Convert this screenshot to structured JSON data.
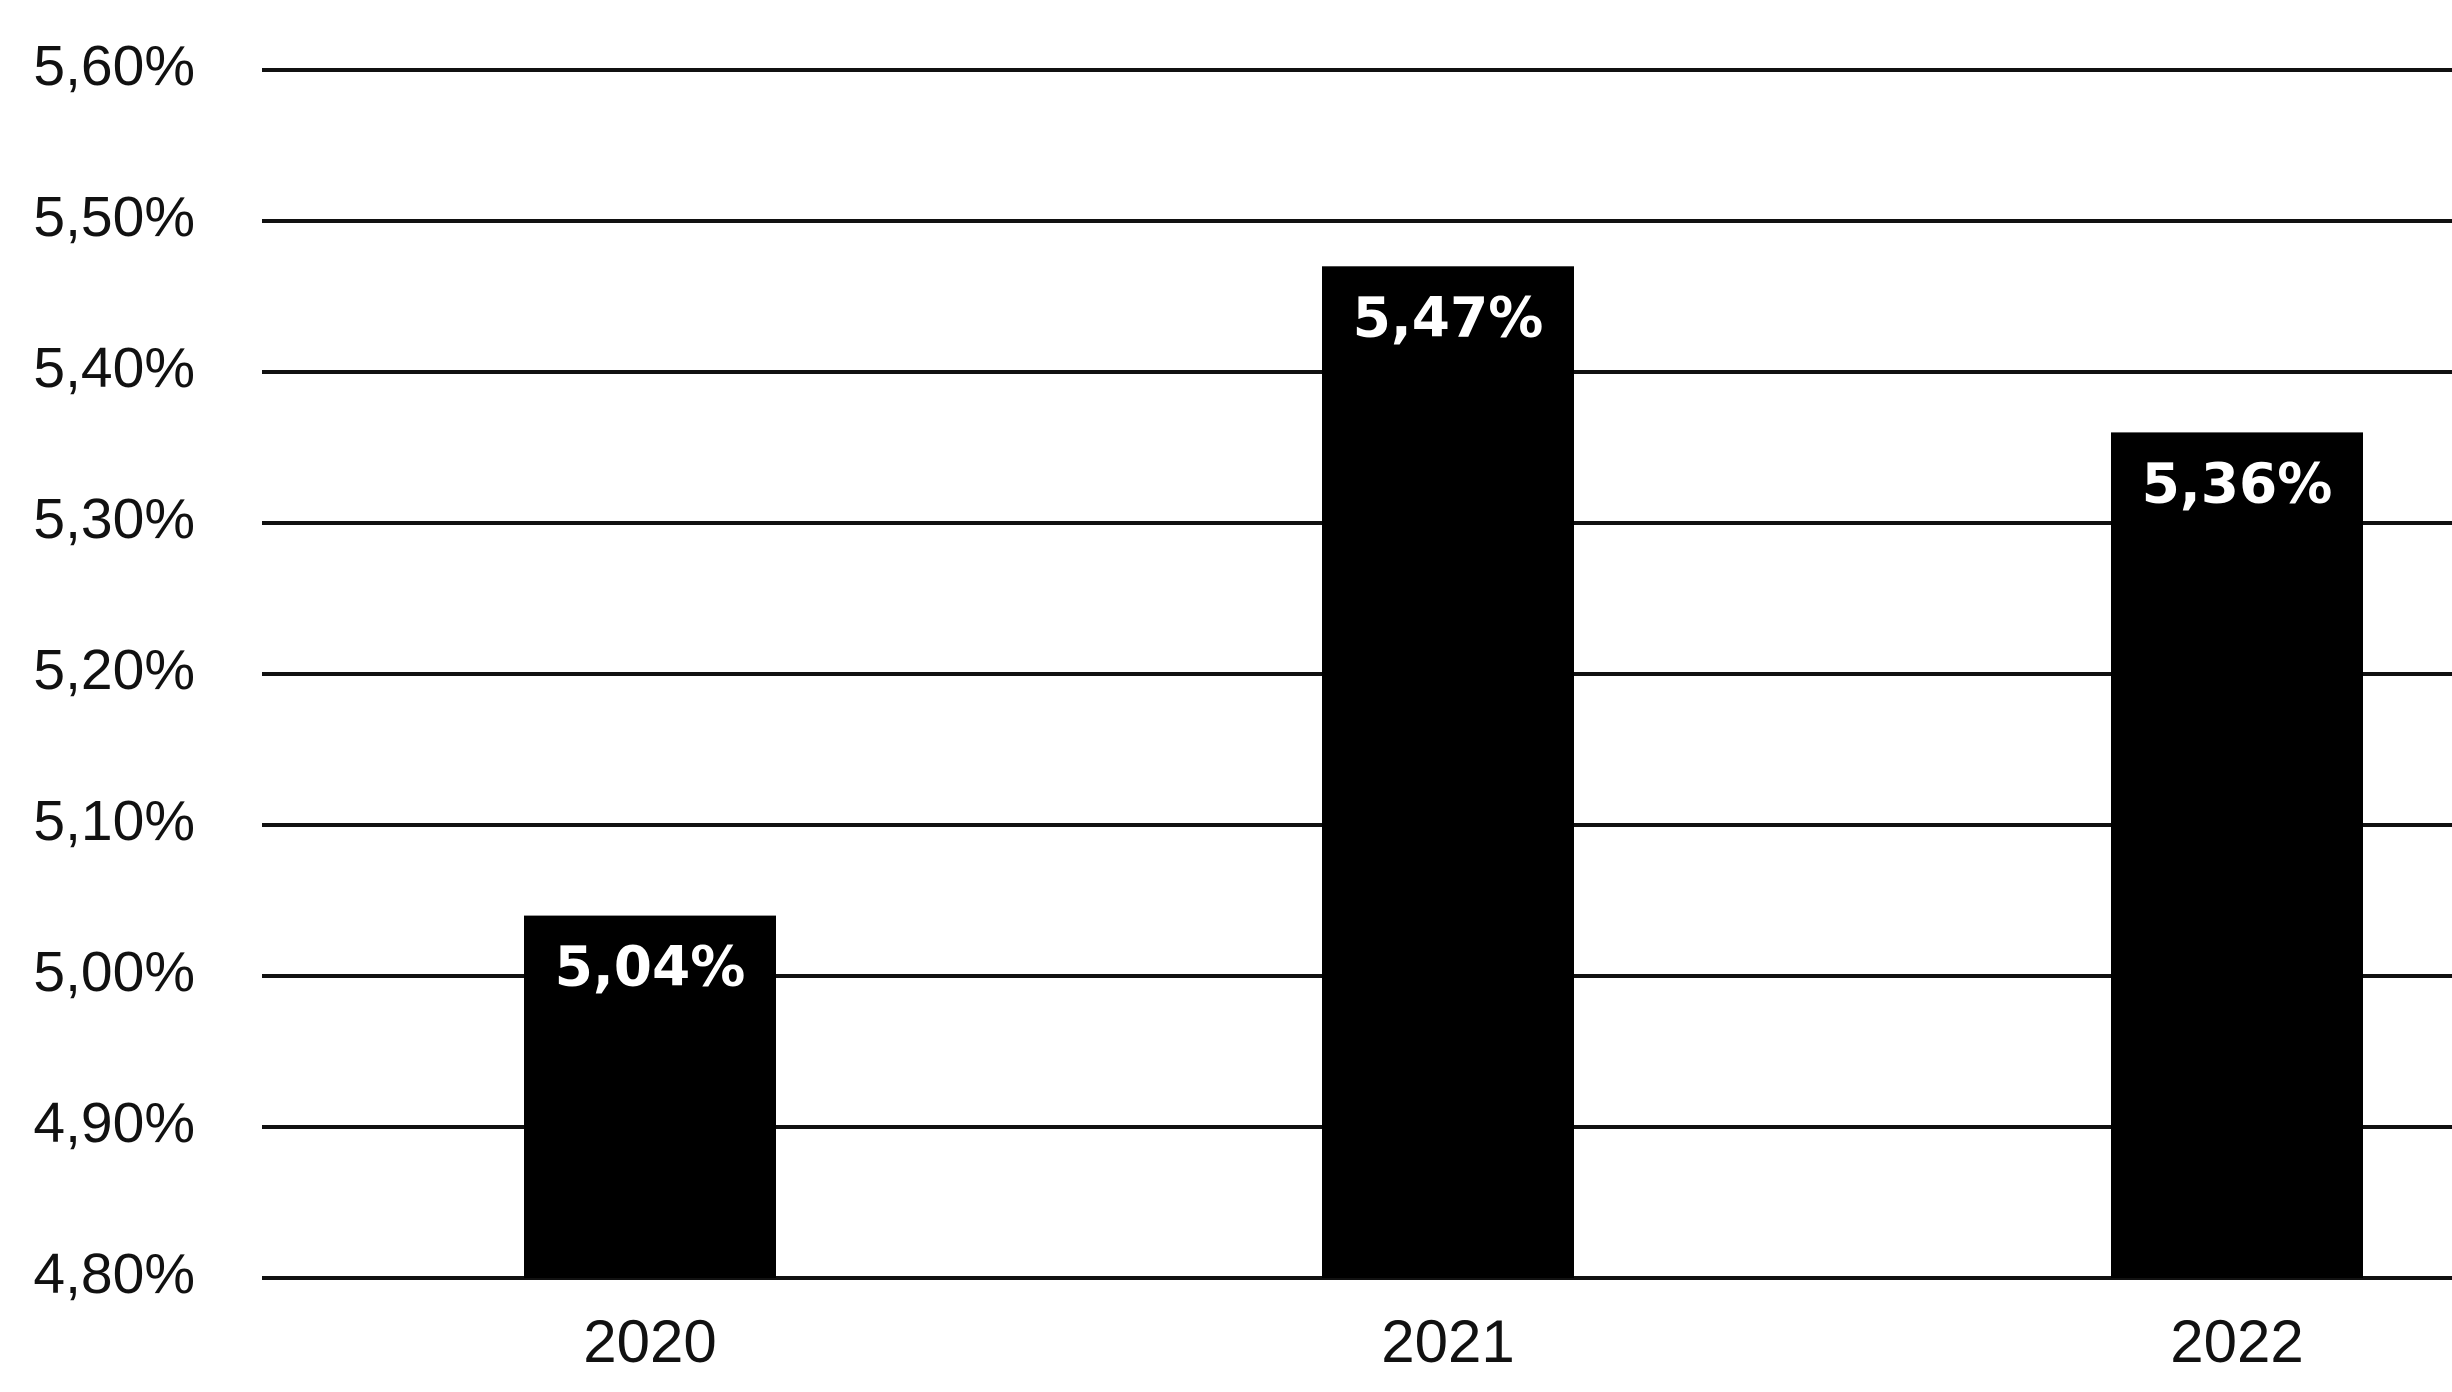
{
  "chart_data": {
    "type": "bar",
    "title": "",
    "xlabel": "",
    "ylabel": "",
    "categories": [
      "2020",
      "2021",
      "2022"
    ],
    "values": [
      5.04,
      5.47,
      5.36
    ],
    "data_labels": [
      "5,04%",
      "5,47%",
      "5,36%"
    ],
    "ylim": [
      4.8,
      5.6
    ],
    "y_ticks": [
      4.8,
      4.9,
      5.0,
      5.1,
      5.2,
      5.3,
      5.4,
      5.5,
      5.6
    ],
    "y_tick_labels": [
      "4,80%",
      "4,90%",
      "5,00%",
      "5,10%",
      "5,20%",
      "5,30%",
      "5,40%",
      "5,50%",
      "5,60%"
    ],
    "grid": true,
    "legend": "none",
    "colors": {
      "bar": "#000000",
      "grid": "#111111",
      "label_text": "#ffffff",
      "axis_text": "#111111",
      "background": "#ffffff"
    }
  }
}
